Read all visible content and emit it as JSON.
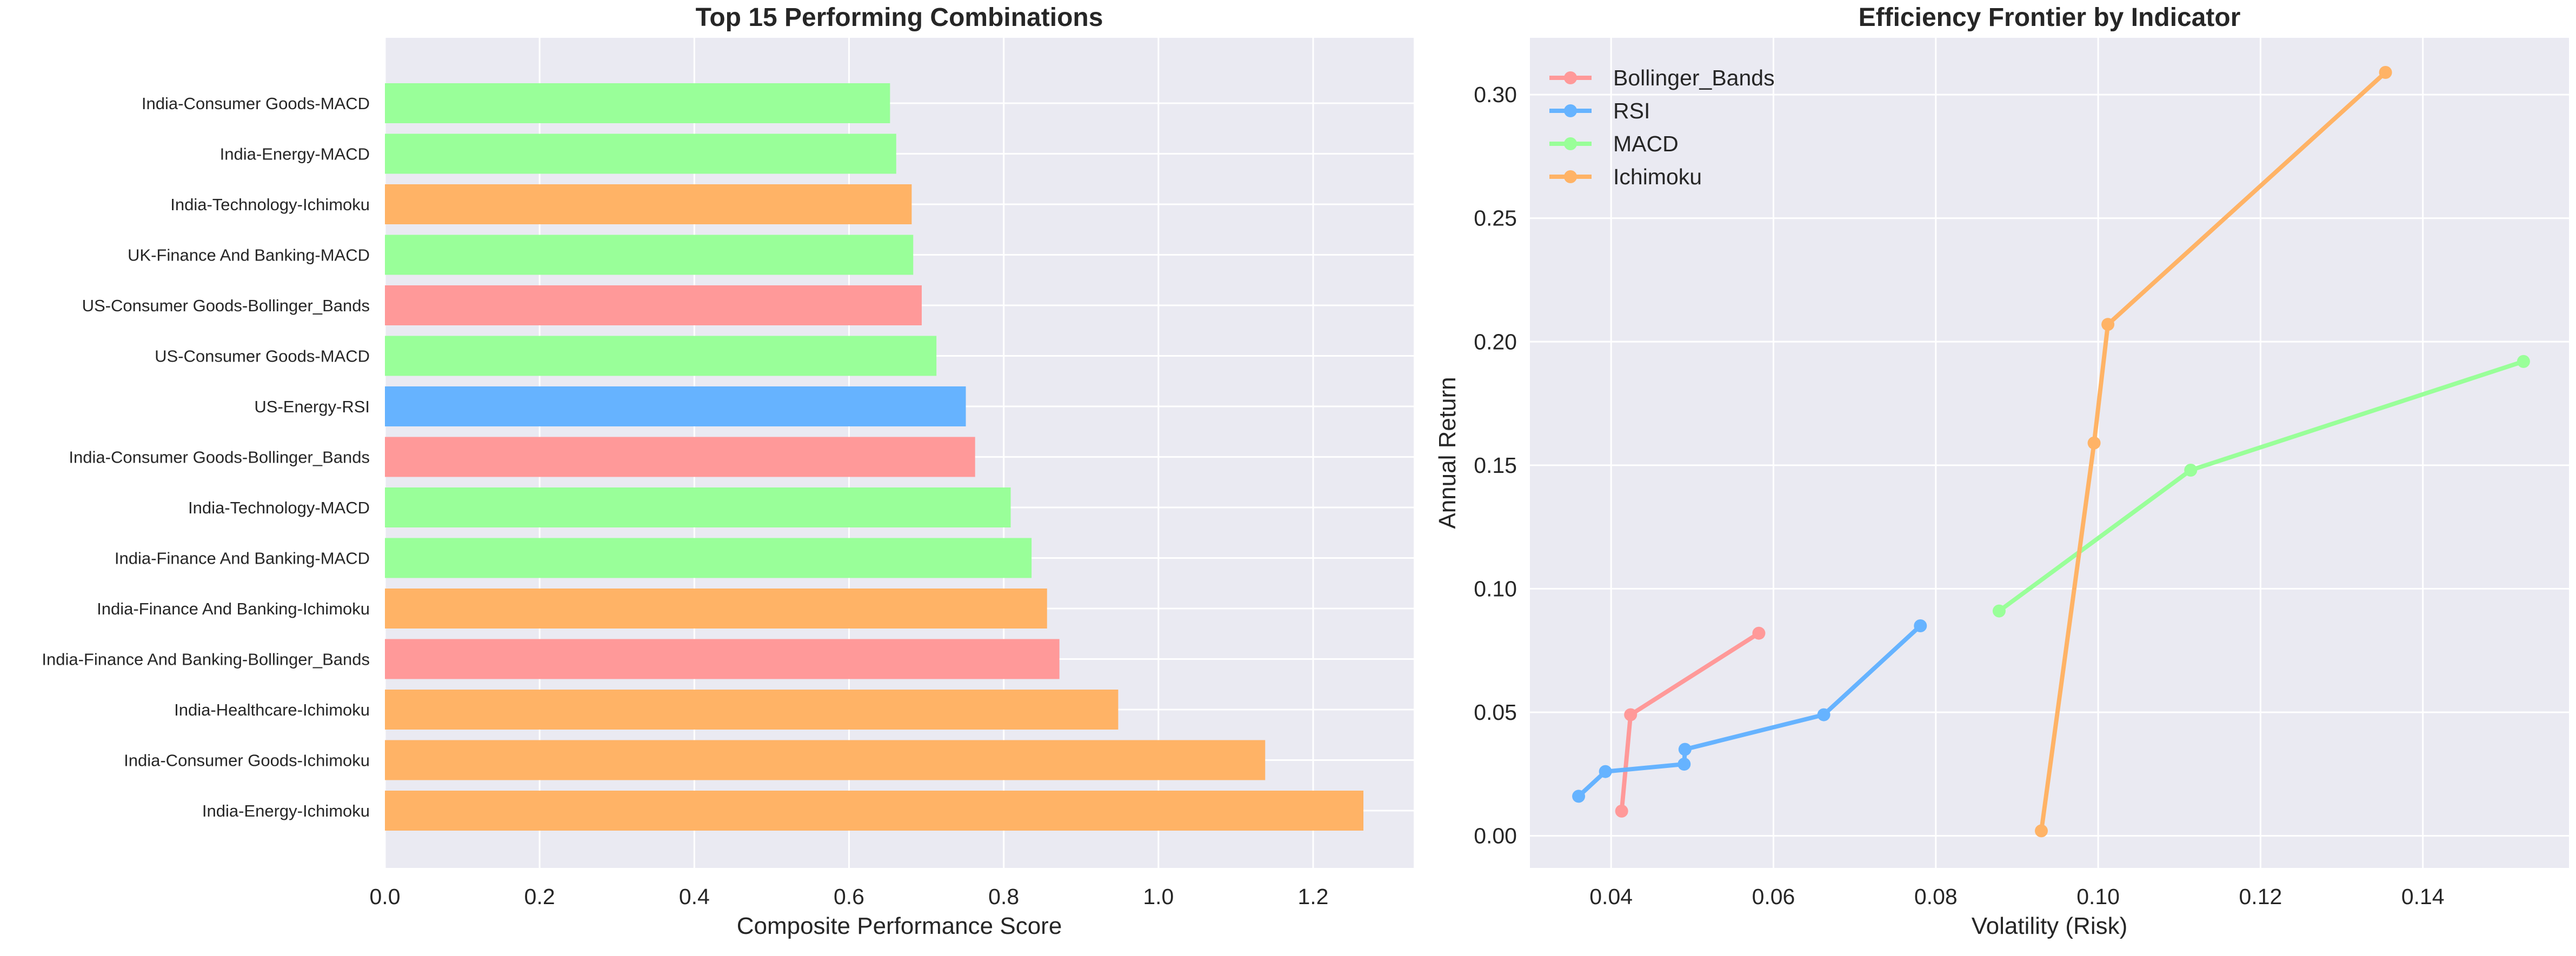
{
  "chart_data": [
    {
      "type": "bar",
      "orientation": "horizontal",
      "title": "Top 15 Performing Combinations",
      "xlabel": "Composite Performance Score",
      "ylabel": "",
      "xlim": [
        0,
        1.33
      ],
      "xticks": [
        "0.0",
        "0.2",
        "0.4",
        "0.6",
        "0.8",
        "1.0",
        "1.2"
      ],
      "grid": true,
      "colors": {
        "MACD": "#99ff99",
        "Ichimoku": "#ffb366",
        "Bollinger_Bands": "#ff9999",
        "RSI": "#66b3ff"
      },
      "bars": [
        {
          "label": "India-Energy-Ichimoku",
          "value": 1.265,
          "indicator": "Ichimoku"
        },
        {
          "label": "India-Consumer Goods-Ichimoku",
          "value": 1.138,
          "indicator": "Ichimoku"
        },
        {
          "label": "India-Healthcare-Ichimoku",
          "value": 0.948,
          "indicator": "Ichimoku"
        },
        {
          "label": "India-Finance And Banking-Bollinger_Bands",
          "value": 0.872,
          "indicator": "Bollinger_Bands"
        },
        {
          "label": "India-Finance And Banking-Ichimoku",
          "value": 0.856,
          "indicator": "Ichimoku"
        },
        {
          "label": "India-Finance And Banking-MACD",
          "value": 0.836,
          "indicator": "MACD"
        },
        {
          "label": "India-Technology-MACD",
          "value": 0.809,
          "indicator": "MACD"
        },
        {
          "label": "India-Consumer Goods-Bollinger_Bands",
          "value": 0.763,
          "indicator": "Bollinger_Bands"
        },
        {
          "label": "US-Energy-RSI",
          "value": 0.751,
          "indicator": "RSI"
        },
        {
          "label": "US-Consumer Goods-MACD",
          "value": 0.713,
          "indicator": "MACD"
        },
        {
          "label": "US-Consumer Goods-Bollinger_Bands",
          "value": 0.694,
          "indicator": "Bollinger_Bands"
        },
        {
          "label": "UK-Finance And Banking-MACD",
          "value": 0.683,
          "indicator": "MACD"
        },
        {
          "label": "India-Technology-Ichimoku",
          "value": 0.681,
          "indicator": "Ichimoku"
        },
        {
          "label": "India-Energy-MACD",
          "value": 0.661,
          "indicator": "MACD"
        },
        {
          "label": "India-Consumer Goods-MACD",
          "value": 0.653,
          "indicator": "MACD"
        }
      ]
    },
    {
      "type": "line",
      "title": "Efficiency Frontier by Indicator",
      "xlabel": "Volatility (Risk)",
      "ylabel": "Annual Return",
      "xlim": [
        0.03,
        0.158
      ],
      "ylim": [
        -0.013,
        0.323
      ],
      "xticks": [
        "0.04",
        "0.06",
        "0.08",
        "0.10",
        "0.12",
        "0.14"
      ],
      "yticks": [
        "0.00",
        "0.05",
        "0.10",
        "0.15",
        "0.20",
        "0.25",
        "0.30"
      ],
      "grid": true,
      "legend_position": "top-left",
      "series": [
        {
          "name": "Bollinger_Bands",
          "color": "#ff9999",
          "points": [
            [
              0.0413,
              0.01
            ],
            [
              0.0424,
              0.049
            ],
            [
              0.0582,
              0.082
            ]
          ]
        },
        {
          "name": "RSI",
          "color": "#66b3ff",
          "points": [
            [
              0.036,
              0.016
            ],
            [
              0.0393,
              0.026
            ],
            [
              0.049,
              0.029
            ],
            [
              0.0491,
              0.035
            ],
            [
              0.0662,
              0.049
            ],
            [
              0.0781,
              0.085
            ]
          ]
        },
        {
          "name": "MACD",
          "color": "#99ff99",
          "points": [
            [
              0.0878,
              0.091
            ],
            [
              0.1114,
              0.148
            ],
            [
              0.1524,
              0.192
            ]
          ]
        },
        {
          "name": "Ichimoku",
          "color": "#ffb366",
          "points": [
            [
              0.093,
              0.002
            ],
            [
              0.0995,
              0.159
            ],
            [
              0.1012,
              0.207
            ],
            [
              0.1354,
              0.309
            ]
          ]
        }
      ]
    }
  ]
}
